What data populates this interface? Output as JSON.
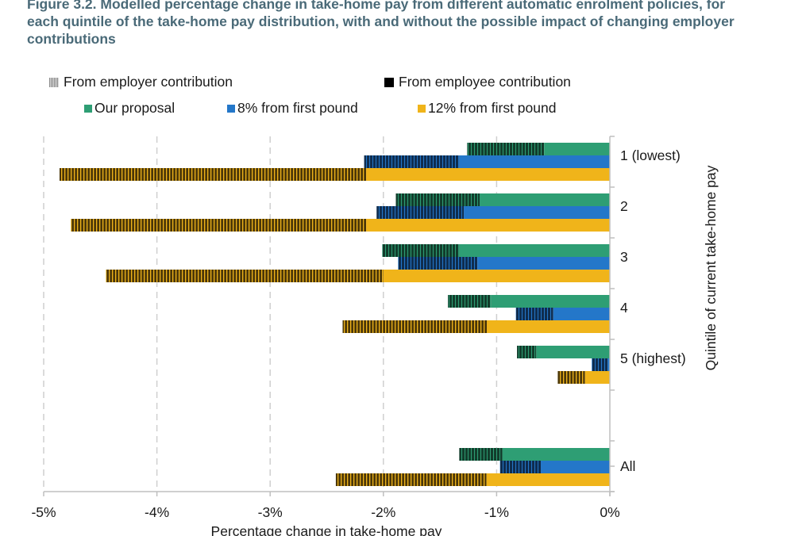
{
  "figure": {
    "title": "Figure 3.2. Modelled percentage change in take-home pay from different automatic enrolment policies, for each quintile of the take-home pay distribution, with and without the possible impact of changing employer contributions"
  },
  "legend": {
    "row1": [
      {
        "label": "From employer contribution",
        "style": "hatched",
        "color": "#888888"
      },
      {
        "label": "From employee contribution",
        "style": "solid",
        "color": "#000000"
      }
    ],
    "row2": [
      {
        "label": "Our proposal",
        "color": "#2e9e74"
      },
      {
        "label": "8% from first pound",
        "color": "#2477c9"
      },
      {
        "label": "12% from first pound",
        "color": "#f0b41a"
      }
    ]
  },
  "chart_data": {
    "type": "bar",
    "orientation": "horizontal",
    "stacked": true,
    "title": "Figure 3.2. Modelled percentage change in take-home pay from different automatic enrolment policies, for each quintile of the take-home pay distribution, with and without the possible impact of changing employer contributions",
    "xlabel": "Percentage change in take-home pay",
    "ylabel": "Quintile of current take-home pay",
    "xlim": [
      -5,
      0
    ],
    "xticks": [
      "-5%",
      "-4%",
      "-3%",
      "-2%",
      "-1%",
      "0%"
    ],
    "xtick_values": [
      -5,
      -4,
      -3,
      -2,
      -1,
      0
    ],
    "grid": "vertical dashed",
    "y_axis_side": "right",
    "categories": [
      "1 (lowest)",
      "2",
      "3",
      "4",
      "5 (highest)",
      "",
      "All"
    ],
    "series": [
      {
        "name": "Our proposal",
        "color": "#2e9e74",
        "employee": [
          -0.58,
          -1.15,
          -1.33,
          -1.05,
          -0.65,
          null,
          -0.95
        ],
        "employer": [
          -0.68,
          -0.74,
          -0.68,
          -0.38,
          -0.17,
          null,
          -0.38
        ]
      },
      {
        "name": "8% from first pound",
        "color": "#2477c9",
        "employee": [
          -1.33,
          -1.29,
          -1.17,
          -0.5,
          -0.02,
          null,
          -0.61
        ],
        "employer": [
          -0.84,
          -0.77,
          -0.7,
          -0.33,
          -0.14,
          null,
          -0.36
        ]
      },
      {
        "name": "12% from first pound",
        "color": "#f0b41a",
        "employee": [
          -2.15,
          -2.15,
          -2.0,
          -1.08,
          -0.22,
          null,
          -1.09
        ],
        "employer": [
          -2.71,
          -2.61,
          -2.45,
          -1.28,
          -0.24,
          null,
          -1.33
        ]
      }
    ],
    "components": [
      "From employee contribution (solid)",
      "From employer contribution (hatched)"
    ]
  }
}
